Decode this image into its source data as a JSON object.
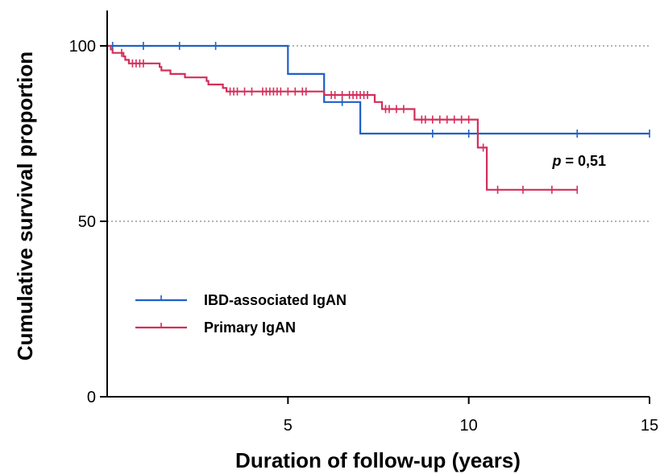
{
  "chart_data": {
    "type": "line",
    "subtype": "kaplan-meier",
    "title": "",
    "xlabel": "Duration of follow-up (years)",
    "ylabel": "Cumulative survival proportion",
    "xlim": [
      0,
      15
    ],
    "ylim": [
      0,
      100
    ],
    "xticks": [
      5,
      10,
      15
    ],
    "yticks": [
      0,
      50,
      100
    ],
    "gridlines_y": [
      50,
      100
    ],
    "grid_style": "dotted",
    "legend_position": "bottom-left",
    "annotation": {
      "prefix": "p",
      "text": " = 0,51",
      "x": 13.2,
      "y": 67
    },
    "series": [
      {
        "name": "IBD-associated IgAN",
        "color": "#1f5fc8",
        "steps": [
          [
            0,
            100
          ],
          [
            5,
            100
          ],
          [
            5,
            92
          ],
          [
            6,
            92
          ],
          [
            6,
            84
          ],
          [
            7,
            84
          ],
          [
            7,
            75
          ],
          [
            15,
            75
          ]
        ],
        "censored": [
          [
            0.15,
            100
          ],
          [
            1,
            100
          ],
          [
            2,
            100
          ],
          [
            3,
            100
          ],
          [
            6.5,
            84
          ],
          [
            9,
            75
          ],
          [
            10,
            75
          ],
          [
            13,
            75
          ],
          [
            15,
            75
          ]
        ]
      },
      {
        "name": "Primary IgAN",
        "color": "#d42e5a",
        "steps": [
          [
            0,
            100
          ],
          [
            0.1,
            100
          ],
          [
            0.1,
            99
          ],
          [
            0.15,
            99
          ],
          [
            0.15,
            98
          ],
          [
            0.45,
            98
          ],
          [
            0.45,
            97
          ],
          [
            0.5,
            97
          ],
          [
            0.5,
            96
          ],
          [
            0.6,
            96
          ],
          [
            0.6,
            95
          ],
          [
            1.45,
            95
          ],
          [
            1.45,
            94
          ],
          [
            1.5,
            94
          ],
          [
            1.5,
            93
          ],
          [
            1.75,
            93
          ],
          [
            1.75,
            92
          ],
          [
            2.15,
            92
          ],
          [
            2.15,
            91
          ],
          [
            2.75,
            91
          ],
          [
            2.75,
            90
          ],
          [
            2.8,
            90
          ],
          [
            2.8,
            89
          ],
          [
            3.2,
            89
          ],
          [
            3.2,
            88
          ],
          [
            3.3,
            88
          ],
          [
            3.3,
            87
          ],
          [
            6,
            87
          ],
          [
            6,
            86
          ],
          [
            7.4,
            86
          ],
          [
            7.4,
            84
          ],
          [
            7.6,
            84
          ],
          [
            7.6,
            82
          ],
          [
            8.5,
            82
          ],
          [
            8.5,
            79
          ],
          [
            10.25,
            79
          ],
          [
            10.25,
            71
          ],
          [
            10.5,
            71
          ],
          [
            10.5,
            59
          ],
          [
            13,
            59
          ]
        ],
        "censored": [
          [
            0.4,
            98
          ],
          [
            0.7,
            95
          ],
          [
            0.8,
            95
          ],
          [
            0.9,
            95
          ],
          [
            1.0,
            95
          ],
          [
            3.4,
            87
          ],
          [
            3.5,
            87
          ],
          [
            3.6,
            87
          ],
          [
            3.8,
            87
          ],
          [
            4.0,
            87
          ],
          [
            4.3,
            87
          ],
          [
            4.4,
            87
          ],
          [
            4.5,
            87
          ],
          [
            4.6,
            87
          ],
          [
            4.7,
            87
          ],
          [
            4.8,
            87
          ],
          [
            5.0,
            87
          ],
          [
            5.2,
            87
          ],
          [
            5.4,
            87
          ],
          [
            5.5,
            87
          ],
          [
            6.2,
            86
          ],
          [
            6.3,
            86
          ],
          [
            6.5,
            86
          ],
          [
            6.7,
            86
          ],
          [
            6.8,
            86
          ],
          [
            6.9,
            86
          ],
          [
            7.0,
            86
          ],
          [
            7.1,
            86
          ],
          [
            7.2,
            86
          ],
          [
            7.7,
            82
          ],
          [
            7.8,
            82
          ],
          [
            8.0,
            82
          ],
          [
            8.2,
            82
          ],
          [
            8.7,
            79
          ],
          [
            8.8,
            79
          ],
          [
            9.0,
            79
          ],
          [
            9.2,
            79
          ],
          [
            9.4,
            79
          ],
          [
            9.6,
            79
          ],
          [
            9.8,
            79
          ],
          [
            10.0,
            79
          ],
          [
            10.4,
            71
          ],
          [
            10.8,
            59
          ],
          [
            11.5,
            59
          ],
          [
            12.3,
            59
          ],
          [
            13.0,
            59
          ]
        ]
      }
    ]
  }
}
